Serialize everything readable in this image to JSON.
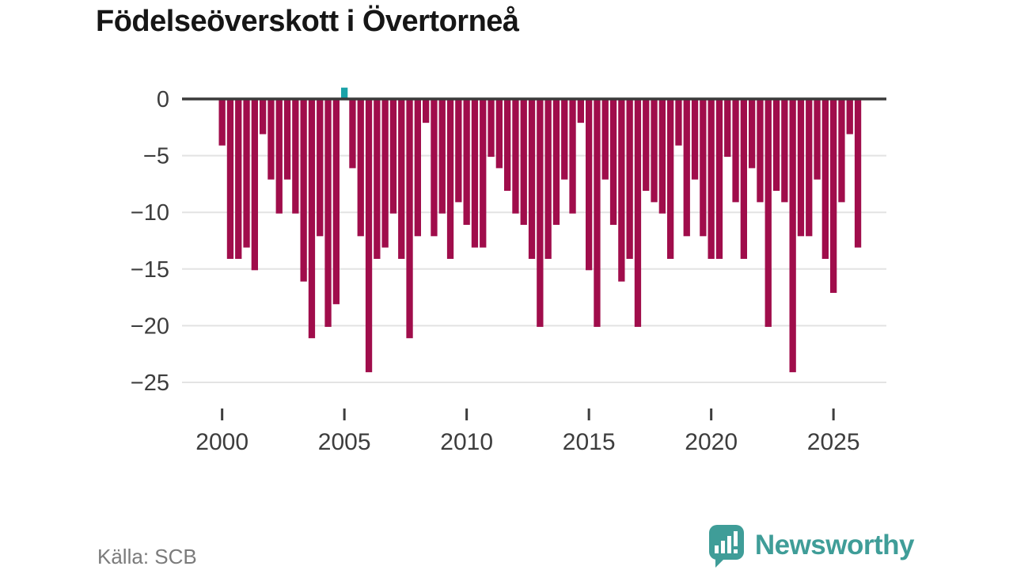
{
  "title": "Födelseöverskott i Övertorneå",
  "source": "Källa: SCB",
  "brand": {
    "name": "Newsworthy",
    "color": "#3f9d98"
  },
  "colors": {
    "negative_bar": "#a00d4b",
    "positive_bar": "#1aa2a8",
    "zero_line": "#3a3a3a",
    "gridline": "#e3e3e3",
    "axis_text": "#3d3d3d",
    "title_text": "#161616",
    "source_text": "#7b7b7b"
  },
  "chart_data": {
    "type": "bar",
    "title": "Födelseöverskott i Övertorneå",
    "xlabel": "",
    "ylabel": "",
    "start_year": 2000,
    "periods_per_year": 3,
    "values": [
      -4,
      -14,
      -14,
      -13,
      -15,
      -3,
      -7,
      -10,
      -7,
      -10,
      -16,
      -21,
      -12,
      -20,
      -18,
      1,
      -6,
      -12,
      -24,
      -14,
      -13,
      -10,
      -14,
      -21,
      -12,
      -2,
      -12,
      -10,
      -14,
      -9,
      -11,
      -13,
      -13,
      -5,
      -6,
      -8,
      -10,
      -11,
      -14,
      -20,
      -14,
      -11,
      -7,
      -10,
      -2,
      -15,
      -20,
      -7,
      -11,
      -16,
      -14,
      -20,
      -8,
      -9,
      -10,
      -14,
      -4,
      -12,
      -7,
      -12,
      -14,
      -14,
      -5,
      -9,
      -14,
      -6,
      -9,
      -20,
      -8,
      -9,
      -24,
      -12,
      -12,
      -7,
      -14,
      -17,
      -9,
      -3,
      -13
    ],
    "x_ticks": [
      2000,
      2005,
      2010,
      2015,
      2020,
      2025
    ],
    "y_ticks": [
      0,
      -5,
      -10,
      -15,
      -20,
      -25
    ],
    "ylim": [
      -25,
      1
    ],
    "grid": true,
    "legend": "none"
  }
}
